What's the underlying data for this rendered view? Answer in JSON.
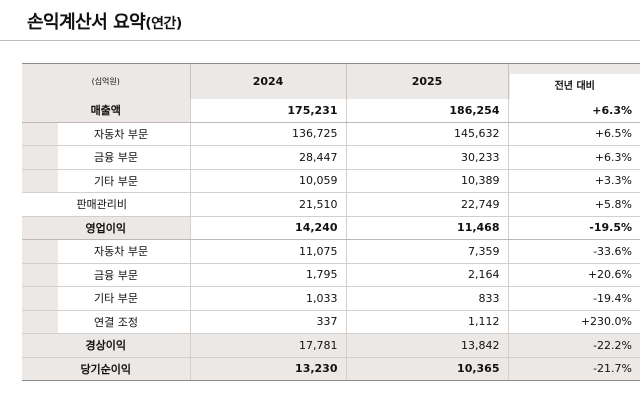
{
  "title": "손익계산서 요약",
  "title_suffix": "(연간)",
  "table": {
    "unit_label": "(십억원)",
    "col_2024": "2024",
    "col_2025": "2025",
    "col_change": "전년 대비",
    "rows": [
      {
        "label": "매출액",
        "v2024": "175,231",
        "v2025": "186,254",
        "chg": "+6.3%"
      },
      {
        "label": "자동차 부문",
        "v2024": "136,725",
        "v2025": "145,632",
        "chg": "+6.5%"
      },
      {
        "label": "금융 부문",
        "v2024": "28,447",
        "v2025": "30,233",
        "chg": "+6.3%"
      },
      {
        "label": "기타 부문",
        "v2024": "10,059",
        "v2025": "10,389",
        "chg": "+3.3%"
      },
      {
        "label": "판매관리비",
        "v2024": "21,510",
        "v2025": "22,749",
        "chg": "+5.8%"
      },
      {
        "label": "영업이익",
        "v2024": "14,240",
        "v2025": "11,468",
        "chg": "-19.5%"
      },
      {
        "label": "자동차 부문",
        "v2024": "11,075",
        "v2025": "7,359",
        "chg": "-33.6%"
      },
      {
        "label": "금융 부문",
        "v2024": "1,795",
        "v2025": "2,164",
        "chg": "+20.6%"
      },
      {
        "label": "기타 부문",
        "v2024": "1,033",
        "v2025": "833",
        "chg": "-19.4%"
      },
      {
        "label": "연결 조정",
        "v2024": "337",
        "v2025": "1,112",
        "chg": "+230.0%"
      },
      {
        "label": "경상이익",
        "v2024": "17,781",
        "v2025": "13,842",
        "chg": "-22.2%"
      },
      {
        "label": "당기순이익",
        "v2024": "13,230",
        "v2025": "10,365",
        "chg": "-21.7%"
      }
    ]
  }
}
